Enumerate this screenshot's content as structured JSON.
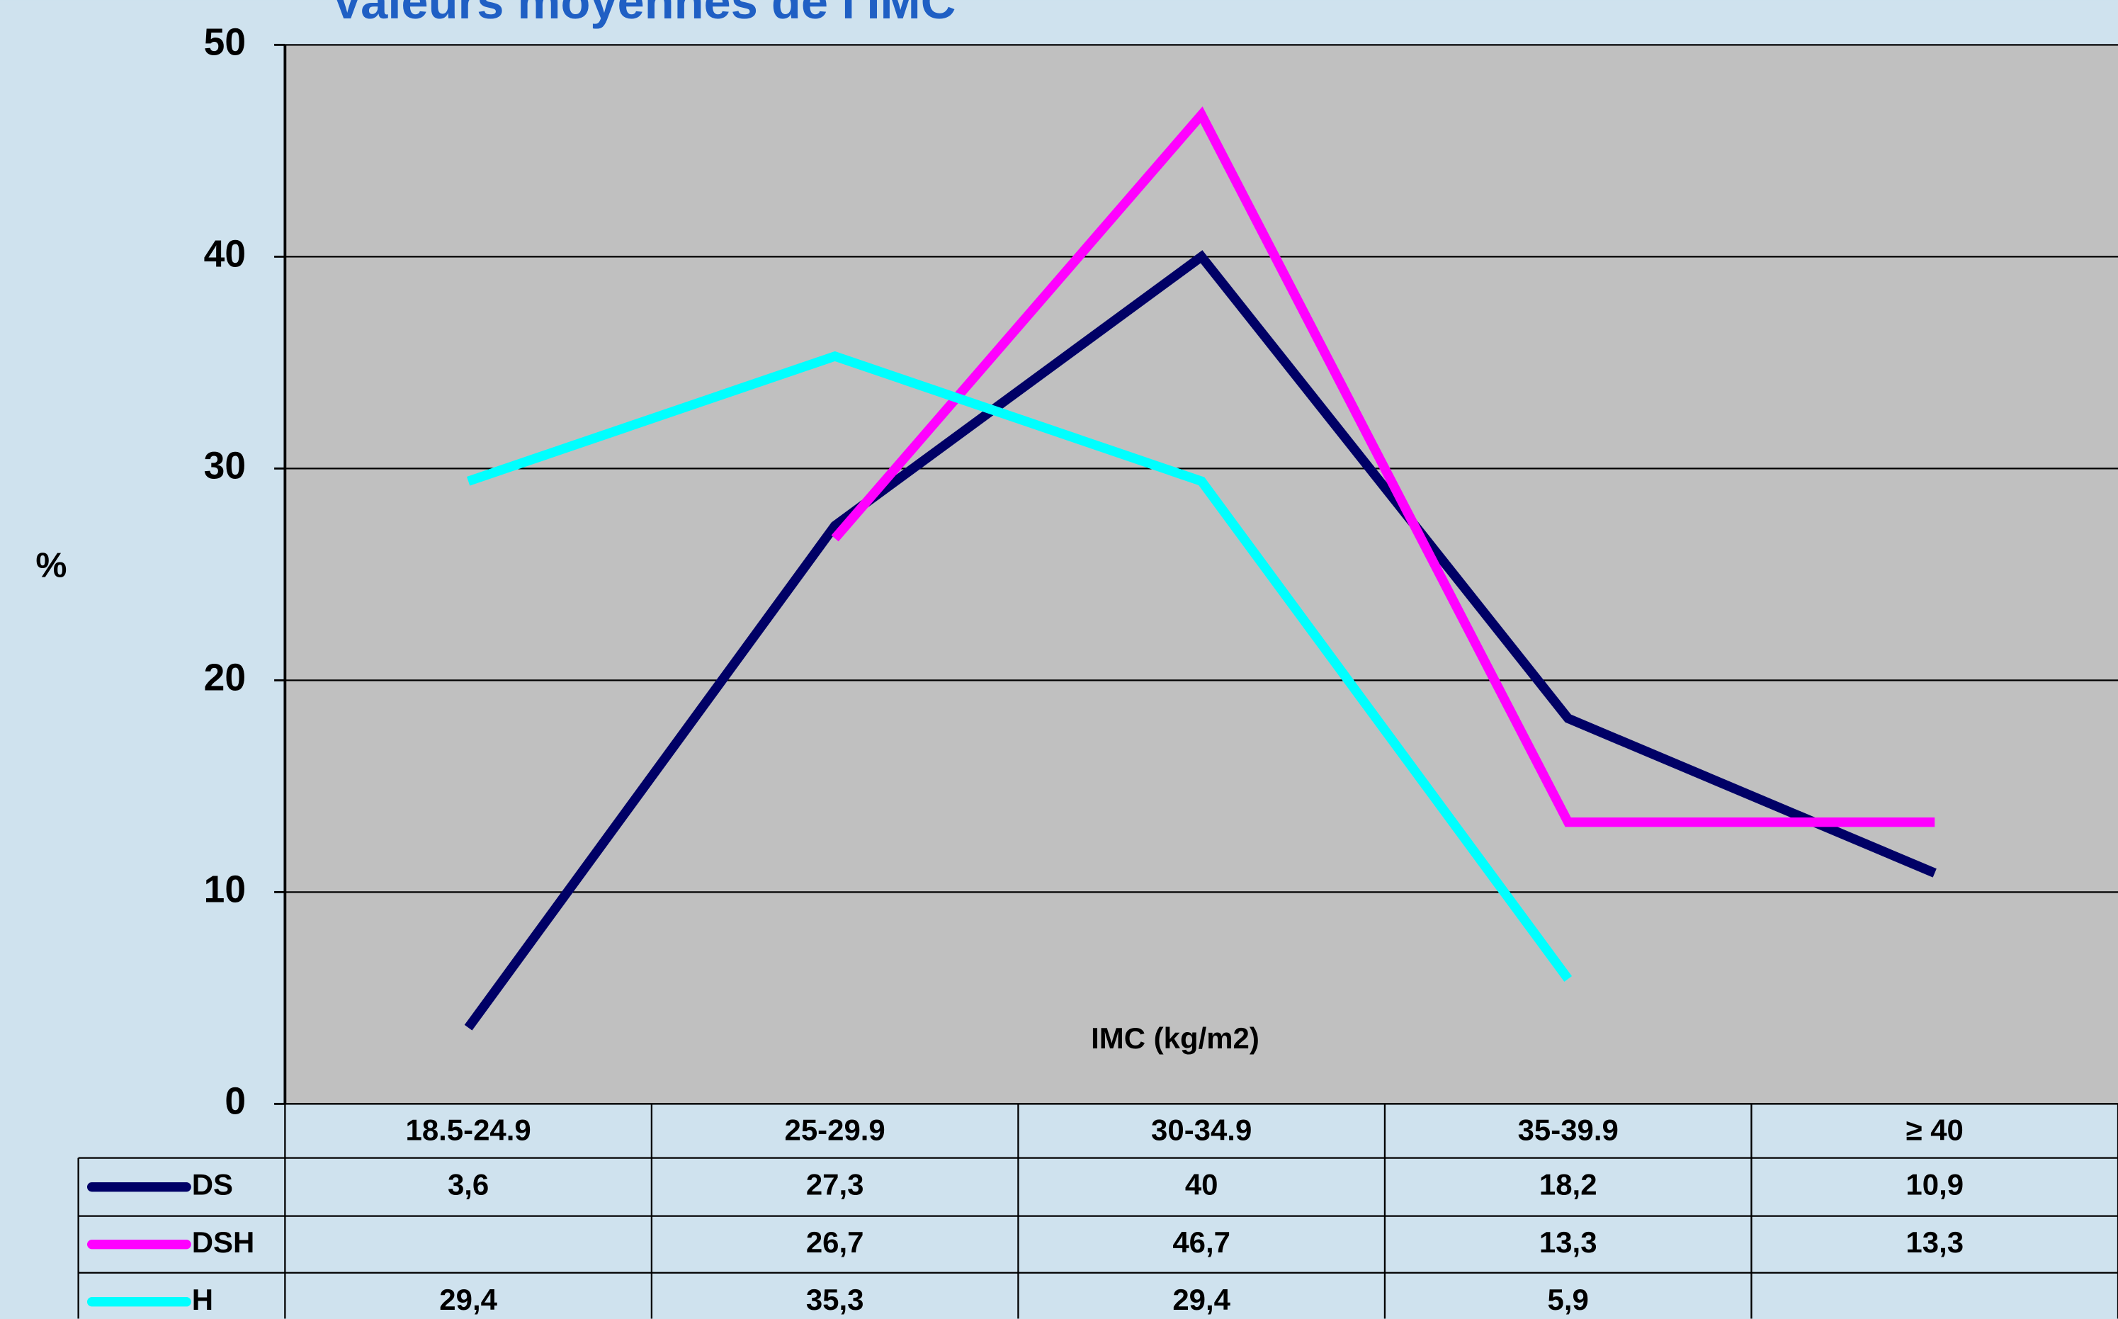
{
  "chart_data": {
    "type": "line",
    "title": "Valeurs moyennes de l'IMC",
    "y_label": "%",
    "x_label": "IMC (kg/m2)",
    "categories": [
      "18.5-24.9",
      "25-29.9",
      "30-34.9",
      "35-39.9",
      "≥ 40"
    ],
    "series": [
      {
        "name": "DS",
        "color": "#000066",
        "values": [
          3.6,
          27.3,
          40,
          18.2,
          10.9
        ],
        "value_labels": [
          "3,6",
          "27,3",
          "40",
          "18,2",
          "10,9"
        ]
      },
      {
        "name": "DSH",
        "color": "#ff00ff",
        "values": [
          null,
          26.7,
          46.7,
          13.3,
          13.3
        ],
        "value_labels": [
          null,
          "26,7",
          "46,7",
          "13,3",
          "13,3"
        ]
      },
      {
        "name": "H",
        "color": "#00ffff",
        "values": [
          29.4,
          35.3,
          29.4,
          5.9,
          null
        ],
        "value_labels": [
          "29,4",
          "35,3",
          "29,4",
          "5,9",
          null
        ]
      }
    ],
    "ylim": [
      0,
      50
    ],
    "yticks": [
      0,
      10,
      20,
      30,
      40,
      50
    ],
    "grid": true
  }
}
